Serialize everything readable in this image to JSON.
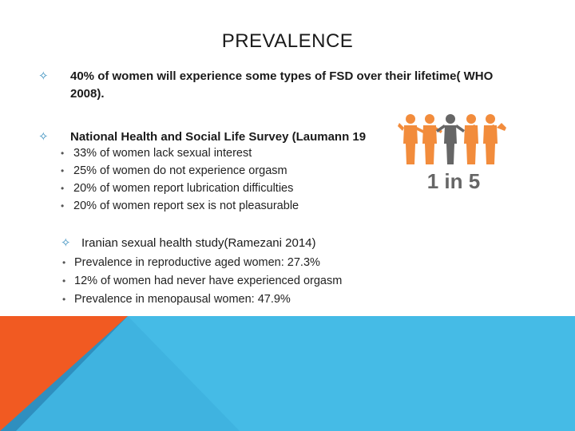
{
  "slide": {
    "title": "PREVALENCE",
    "point1": {
      "line1": "40% of women will experience some types of FSD over their lifetime( WHO",
      "line2": "2008)."
    },
    "point2": {
      "heading": "National Health and Social Life Survey (Laumann 19",
      "items": [
        "33% of women lack sexual interest",
        "25% of women do not experience orgasm",
        "20% of women report lubrication difficulties",
        "20% of women report sex is not pleasurable"
      ]
    },
    "point3": {
      "heading": "Iranian sexual health study(Ramezani 2014)",
      "items": [
        "Prevalence in reproductive aged women:  27.3%",
        "12% of women had never have experienced orgasm",
        "Prevalence in menopausal women: 47.9%"
      ]
    },
    "figure": {
      "caption": "1 in 5",
      "people_icon": "people-group-icon"
    },
    "colors": {
      "accent_blue": "#3fb3e0",
      "accent_blue_dark": "#2f8fbf",
      "accent_orange": "#f15a22",
      "figure_orange": "#f28c3c",
      "figure_gray": "#666666"
    }
  }
}
